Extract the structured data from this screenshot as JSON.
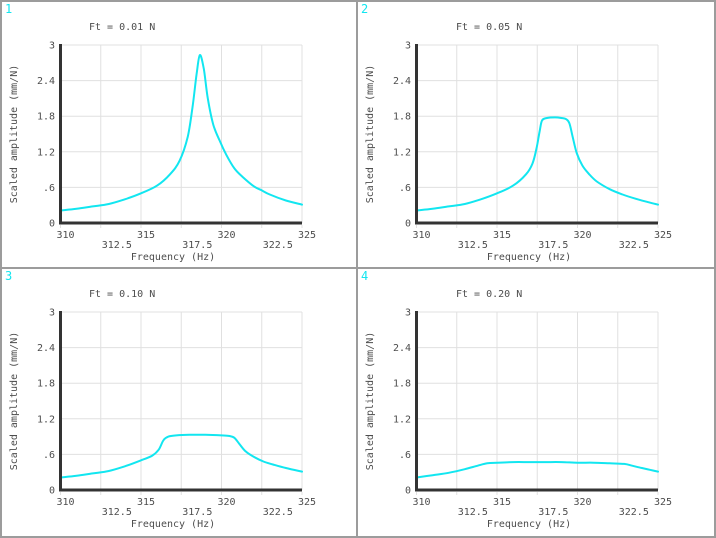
{
  "theme": {
    "background": "#ffffff",
    "border_color": "#9c9c9c",
    "grid_color": "#e0e0e0",
    "axis_color": "#333333",
    "text_color": "#4d4d4d",
    "curve_color": "#12e6f0",
    "panel_number_color": "#12e6f0"
  },
  "chart_data": [
    {
      "type": "line",
      "panel_number": "1",
      "title": "Ft = 0.01 N",
      "xlabel": "Frequency (Hz)",
      "ylabel": "Scaled amplitude (mm/N)",
      "xlim": [
        310,
        325
      ],
      "ylim": [
        0,
        3
      ],
      "grid": true,
      "xticks": [
        {
          "value": 310,
          "label": "310",
          "row": 1
        },
        {
          "value": 312.5,
          "label": "312.5",
          "row": 2
        },
        {
          "value": 315,
          "label": "315",
          "row": 1
        },
        {
          "value": 317.5,
          "label": "317.5",
          "row": 2
        },
        {
          "value": 320,
          "label": "320",
          "row": 1
        },
        {
          "value": 322.5,
          "label": "322.5",
          "row": 2
        },
        {
          "value": 325,
          "label": "325",
          "row": 1
        }
      ],
      "yticks": [
        {
          "value": 0,
          "label": "0"
        },
        {
          "value": 0.6,
          "label": ".6"
        },
        {
          "value": 1.2,
          "label": "1.2"
        },
        {
          "value": 1.8,
          "label": "1.8"
        },
        {
          "value": 2.4,
          "label": "2.4"
        },
        {
          "value": 3,
          "label": "3"
        }
      ],
      "series": [
        {
          "x": [
            310,
            311,
            312,
            313,
            314,
            315,
            316,
            316.8,
            317.4,
            317.9,
            318.2,
            318.45,
            318.65,
            318.9,
            319.15,
            319.5,
            319.9,
            320.3,
            320.8,
            321.3,
            322,
            322.5,
            323,
            324,
            325
          ],
          "y": [
            0.21,
            0.24,
            0.28,
            0.32,
            0.4,
            0.5,
            0.63,
            0.82,
            1.05,
            1.45,
            1.95,
            2.5,
            2.83,
            2.6,
            2.1,
            1.65,
            1.38,
            1.15,
            0.92,
            0.78,
            0.62,
            0.55,
            0.48,
            0.38,
            0.31
          ]
        }
      ]
    },
    {
      "type": "line",
      "panel_number": "2",
      "title": "Ft = 0.05 N",
      "xlabel": "Frequency (Hz)",
      "ylabel": "Scaled amplitude (mm/N)",
      "xlim": [
        310,
        325
      ],
      "ylim": [
        0,
        3
      ],
      "grid": true,
      "xticks": [
        {
          "value": 310,
          "label": "310",
          "row": 1
        },
        {
          "value": 312.5,
          "label": "312.5",
          "row": 2
        },
        {
          "value": 315,
          "label": "315",
          "row": 1
        },
        {
          "value": 317.5,
          "label": "317.5",
          "row": 2
        },
        {
          "value": 320,
          "label": "320",
          "row": 1
        },
        {
          "value": 322.5,
          "label": "322.5",
          "row": 2
        },
        {
          "value": 325,
          "label": "325",
          "row": 1
        }
      ],
      "yticks": [
        {
          "value": 0,
          "label": "0"
        },
        {
          "value": 0.6,
          "label": ".6"
        },
        {
          "value": 1.2,
          "label": "1.2"
        },
        {
          "value": 1.8,
          "label": "1.8"
        },
        {
          "value": 2.4,
          "label": "2.4"
        },
        {
          "value": 3,
          "label": "3"
        }
      ],
      "series": [
        {
          "x": [
            310,
            311,
            312,
            313,
            314,
            315,
            316,
            316.8,
            317.2,
            317.45,
            317.65,
            317.8,
            318.1,
            318.6,
            319.0,
            319.3,
            319.5,
            319.7,
            319.95,
            320.3,
            320.7,
            321.2,
            322,
            322.8,
            323.6,
            324.4,
            325
          ],
          "y": [
            0.21,
            0.24,
            0.28,
            0.32,
            0.4,
            0.5,
            0.63,
            0.82,
            1.0,
            1.25,
            1.55,
            1.73,
            1.77,
            1.78,
            1.77,
            1.75,
            1.68,
            1.45,
            1.18,
            0.97,
            0.83,
            0.7,
            0.57,
            0.48,
            0.41,
            0.35,
            0.31
          ]
        }
      ]
    },
    {
      "type": "line",
      "panel_number": "3",
      "title": "Ft = 0.10 N",
      "xlabel": "Frequency (Hz)",
      "ylabel": "Scaled amplitude (mm/N)",
      "xlim": [
        310,
        325
      ],
      "ylim": [
        0,
        3
      ],
      "grid": true,
      "xticks": [
        {
          "value": 310,
          "label": "310",
          "row": 1
        },
        {
          "value": 312.5,
          "label": "312.5",
          "row": 2
        },
        {
          "value": 315,
          "label": "315",
          "row": 1
        },
        {
          "value": 317.5,
          "label": "317.5",
          "row": 2
        },
        {
          "value": 320,
          "label": "320",
          "row": 1
        },
        {
          "value": 322.5,
          "label": "322.5",
          "row": 2
        },
        {
          "value": 325,
          "label": "325",
          "row": 1
        }
      ],
      "yticks": [
        {
          "value": 0,
          "label": "0"
        },
        {
          "value": 0.6,
          "label": ".6"
        },
        {
          "value": 1.2,
          "label": "1.2"
        },
        {
          "value": 1.8,
          "label": "1.8"
        },
        {
          "value": 2.4,
          "label": "2.4"
        },
        {
          "value": 3,
          "label": "3"
        }
      ],
      "series": [
        {
          "x": [
            310,
            311,
            312,
            313,
            314,
            315,
            315.7,
            316.1,
            316.4,
            316.7,
            317.2,
            318,
            319,
            320,
            320.5,
            320.8,
            321.1,
            321.5,
            322,
            322.6,
            323.2,
            324,
            325
          ],
          "y": [
            0.21,
            0.24,
            0.28,
            0.32,
            0.4,
            0.5,
            0.58,
            0.68,
            0.84,
            0.9,
            0.92,
            0.93,
            0.93,
            0.92,
            0.91,
            0.88,
            0.78,
            0.65,
            0.56,
            0.48,
            0.43,
            0.37,
            0.31
          ]
        }
      ]
    },
    {
      "type": "line",
      "panel_number": "4",
      "title": "Ft = 0.20 N",
      "xlabel": "Frequency (Hz)",
      "ylabel": "Scaled amplitude (mm/N)",
      "xlim": [
        310,
        325
      ],
      "ylim": [
        0,
        3
      ],
      "grid": true,
      "xticks": [
        {
          "value": 310,
          "label": "310",
          "row": 1
        },
        {
          "value": 312.5,
          "label": "312.5",
          "row": 2
        },
        {
          "value": 315,
          "label": "315",
          "row": 1
        },
        {
          "value": 317.5,
          "label": "317.5",
          "row": 2
        },
        {
          "value": 320,
          "label": "320",
          "row": 1
        },
        {
          "value": 322.5,
          "label": "322.5",
          "row": 2
        },
        {
          "value": 325,
          "label": "325",
          "row": 1
        }
      ],
      "yticks": [
        {
          "value": 0,
          "label": "0"
        },
        {
          "value": 0.6,
          "label": ".6"
        },
        {
          "value": 1.2,
          "label": "1.2"
        },
        {
          "value": 1.8,
          "label": "1.8"
        },
        {
          "value": 2.4,
          "label": "2.4"
        },
        {
          "value": 3,
          "label": "3"
        }
      ],
      "series": [
        {
          "x": [
            310,
            311,
            312,
            313,
            313.8,
            314.4,
            315,
            316,
            317,
            318,
            319,
            320,
            321,
            322,
            322.9,
            323.4,
            324,
            324.5,
            325
          ],
          "y": [
            0.21,
            0.25,
            0.29,
            0.35,
            0.41,
            0.45,
            0.46,
            0.47,
            0.47,
            0.47,
            0.47,
            0.46,
            0.46,
            0.45,
            0.44,
            0.41,
            0.37,
            0.34,
            0.31
          ]
        }
      ]
    }
  ]
}
